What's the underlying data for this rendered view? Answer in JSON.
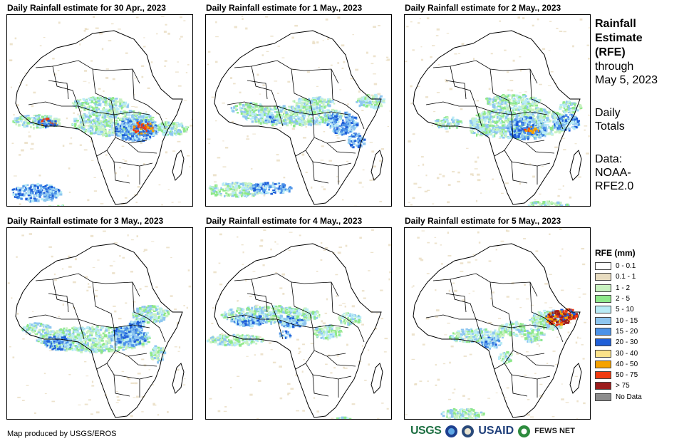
{
  "panels": [
    {
      "title": "Daily Rainfall estimate for 30 Apr., 2023",
      "pattern": "central_wet"
    },
    {
      "title": "Daily Rainfall estimate for 1 May., 2023",
      "pattern": "west_central"
    },
    {
      "title": "Daily Rainfall estimate for 2 May., 2023",
      "pattern": "east_heavy"
    },
    {
      "title": "Daily Rainfall estimate for 3 May., 2023",
      "pattern": "moderate"
    },
    {
      "title": "Daily Rainfall estimate for 4 May., 2023",
      "pattern": "west_belt"
    },
    {
      "title": "Daily Rainfall estimate for 5 May., 2023",
      "pattern": "horn_extreme"
    }
  ],
  "sidebar": {
    "heading_line1": "Rainfall",
    "heading_line2": "Estimate",
    "heading_line3": "(RFE)",
    "through_label": "through",
    "through_date": "May 5, 2023",
    "totals_line1": "Daily",
    "totals_line2": "Totals",
    "data_line1": "Data:",
    "data_line2": "NOAA-",
    "data_line3": "RFE2.0"
  },
  "legend": {
    "title": "RFE (mm)",
    "items": [
      {
        "label": "0 - 0.1",
        "color": "#ffffff"
      },
      {
        "label": "0.1 - 1",
        "color": "#e8dcc0"
      },
      {
        "label": "1 - 2",
        "color": "#c8f2c0"
      },
      {
        "label": "2 - 5",
        "color": "#8ee88a"
      },
      {
        "label": "5 - 10",
        "color": "#b9ecf6"
      },
      {
        "label": "10 - 15",
        "color": "#8ec6f0"
      },
      {
        "label": "15 - 20",
        "color": "#4c92e8"
      },
      {
        "label": "20 - 30",
        "color": "#1f5fd8"
      },
      {
        "label": "30 - 40",
        "color": "#fbe28a"
      },
      {
        "label": "40 - 50",
        "color": "#f5a200"
      },
      {
        "label": "50 - 75",
        "color": "#f03a10"
      },
      {
        "label": "> 75",
        "color": "#9c1c1c"
      },
      {
        "label": "No Data",
        "color": "#8c8c8c"
      }
    ]
  },
  "footer": {
    "credit": "Map produced by USGS/EROS",
    "logos": {
      "usgs": "USGS",
      "usaid": "USAID",
      "fews": "FEWS NET"
    }
  }
}
